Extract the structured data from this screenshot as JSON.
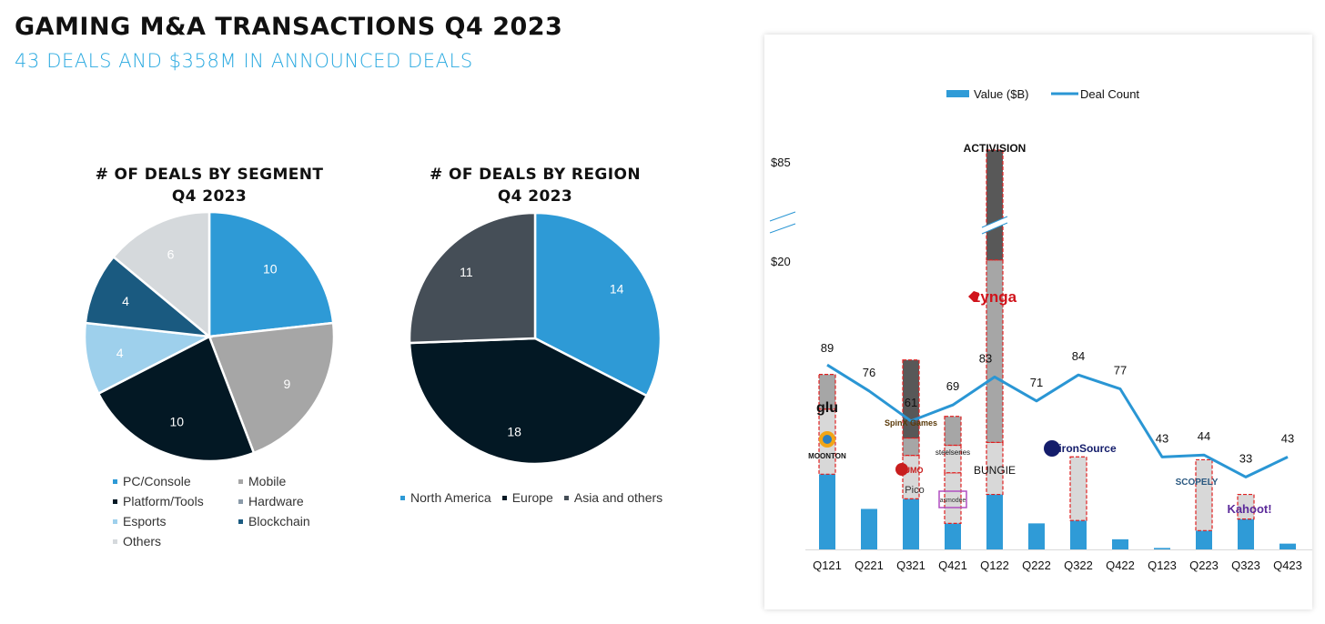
{
  "header": {
    "title": "GAMING M&A TRANSACTIONS Q4 2023",
    "subtitle": "43 DEALS AND $358M IN ANNOUNCED DEALS"
  },
  "colors": {
    "accent": "#29a9e0",
    "pc_console": "#2e9ad6",
    "mobile": "#a6a6a6",
    "platform_tools": "#031824",
    "hardware": "#8a9aa8",
    "esports": "#9ed0ec",
    "blockchain": "#1a5a80",
    "others": "#d5d9dc",
    "north_america": "#2e9ad6",
    "europe": "#031824",
    "asia": "#454e57",
    "bar_blue": "#2f9bd7",
    "line_blue": "#2a96d4",
    "stack_dark": "#585858",
    "stack_mid": "#a6a6a6",
    "stack_light": "#d8d8d8",
    "stack_border": "#e02020"
  },
  "chart_data": [
    {
      "type": "pie",
      "title": "# OF DEALS BY SEGMENT",
      "subtitle": "Q4 2023",
      "slices": [
        {
          "label": "PC/Console",
          "value": 10,
          "color_key": "pc_console"
        },
        {
          "label": "Mobile",
          "value": 9,
          "color_key": "mobile"
        },
        {
          "label": "Platform/Tools",
          "value": 10,
          "color_key": "platform_tools"
        },
        {
          "label": "Esports",
          "value": 4,
          "color_key": "esports"
        },
        {
          "label": "Blockchain",
          "value": 4,
          "color_key": "blockchain"
        },
        {
          "label": "Others",
          "value": 6,
          "color_key": "others"
        }
      ],
      "legend": [
        {
          "label": "PC/Console",
          "color_key": "pc_console"
        },
        {
          "label": "Mobile",
          "color_key": "mobile"
        },
        {
          "label": "Platform/Tools",
          "color_key": "platform_tools"
        },
        {
          "label": "Hardware",
          "color_key": "hardware"
        },
        {
          "label": "Esports",
          "color_key": "esports"
        },
        {
          "label": "Blockchain",
          "color_key": "blockchain"
        },
        {
          "label": "Others",
          "color_key": "others"
        }
      ],
      "legend_position": "bottom"
    },
    {
      "type": "pie",
      "title": "# OF DEALS BY REGION",
      "subtitle": "Q4 2023",
      "slices": [
        {
          "label": "North America",
          "value": 14,
          "color_key": "north_america"
        },
        {
          "label": "Europe",
          "value": 18,
          "color_key": "europe"
        },
        {
          "label": "Asia and others",
          "value": 11,
          "color_key": "asia"
        }
      ],
      "legend": [
        {
          "label": "North America",
          "color_key": "north_america"
        },
        {
          "label": "Europe",
          "color_key": "europe"
        },
        {
          "label": "Asia and others",
          "color_key": "asia"
        }
      ],
      "legend_position": "bottom"
    },
    {
      "type": "bar",
      "combo": "bar+line",
      "categories": [
        "Q121",
        "Q221",
        "Q321",
        "Q421",
        "Q122",
        "Q222",
        "Q322",
        "Q422",
        "Q123",
        "Q223",
        "Q323",
        "Q423"
      ],
      "series": [
        {
          "name": "Value ($B)",
          "type": "bar",
          "values": [
            5.2,
            2.8,
            3.5,
            1.8,
            3.8,
            1.8,
            2.0,
            0.7,
            0.1,
            1.3,
            2.1,
            0.4
          ]
        },
        {
          "name": "Deal Count",
          "type": "line",
          "values": [
            89,
            76,
            61,
            69,
            83,
            71,
            84,
            77,
            43,
            44,
            33,
            43
          ]
        }
      ],
      "y_ticks": [
        "$20",
        "$85"
      ],
      "axis_break": true,
      "legend_position": "top",
      "stacked_highlights": [
        {
          "quarter": "Q121",
          "segments": [
            {
              "shade": "stack_light",
              "label": "MOONTON",
              "value": 4.5
            },
            {
              "shade": "stack_mid",
              "label": "glu",
              "value": 2.4
            }
          ]
        },
        {
          "quarter": "Q321",
          "segments": [
            {
              "shade": "stack_light",
              "label": "Pico",
              "value": 3.0
            },
            {
              "shade": "stack_mid",
              "label": "SUMO",
              "value": 1.2
            },
            {
              "shade": "stack_dark",
              "label": "SpinX Games",
              "value": 5.4
            }
          ]
        },
        {
          "quarter": "Q421",
          "segments": [
            {
              "shade": "stack_light",
              "label": "asmodee",
              "value": 3.5
            },
            {
              "shade": "stack_light",
              "label": "",
              "value": 1.9
            },
            {
              "shade": "stack_mid",
              "label": "steelseries",
              "value": 2.0
            }
          ]
        },
        {
          "quarter": "Q122",
          "segments": [
            {
              "shade": "stack_light",
              "label": "BUNGIE",
              "value": 3.6
            },
            {
              "shade": "stack_mid",
              "label": "zynga",
              "value": 12.7
            },
            {
              "shade": "stack_dark",
              "label": "ACTIVISION",
              "value": 68.9
            }
          ]
        },
        {
          "quarter": "Q322",
          "segments": [
            {
              "shade": "stack_light",
              "label": "ironSource",
              "value": 4.4
            }
          ]
        },
        {
          "quarter": "Q223",
          "segments": [
            {
              "shade": "stack_light",
              "label": "SCOPELY",
              "value": 4.9
            }
          ]
        },
        {
          "quarter": "Q323",
          "segments": [
            {
              "shade": "stack_light",
              "label": "Kahoot!",
              "value": 1.7
            }
          ]
        }
      ]
    }
  ]
}
